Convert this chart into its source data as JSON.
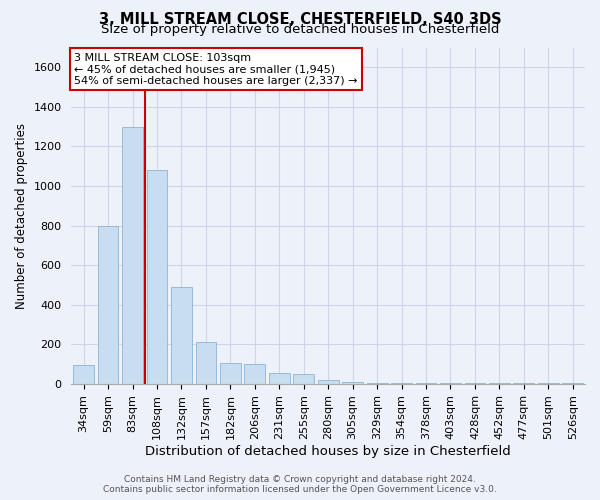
{
  "title": "3, MILL STREAM CLOSE, CHESTERFIELD, S40 3DS",
  "subtitle": "Size of property relative to detached houses in Chesterfield",
  "xlabel": "Distribution of detached houses by size in Chesterfield",
  "ylabel": "Number of detached properties",
  "categories": [
    "34sqm",
    "59sqm",
    "83sqm",
    "108sqm",
    "132sqm",
    "157sqm",
    "182sqm",
    "206sqm",
    "231sqm",
    "255sqm",
    "280sqm",
    "305sqm",
    "329sqm",
    "354sqm",
    "378sqm",
    "403sqm",
    "428sqm",
    "452sqm",
    "477sqm",
    "501sqm",
    "526sqm"
  ],
  "values": [
    95,
    800,
    1300,
    1080,
    490,
    215,
    105,
    100,
    55,
    50,
    20,
    12,
    5,
    5,
    5,
    5,
    5,
    5,
    5,
    5,
    5
  ],
  "bar_color": "#c9ddf0",
  "bar_edge_color": "#8ab4d8",
  "grid_color": "#cdd5e8",
  "background_color": "#edf1f9",
  "annotation_box_color": "#ffffff",
  "annotation_box_edge": "#cc0000",
  "property_line_color": "#cc0000",
  "property_bin_index": 3,
  "annotation_line1": "3 MILL STREAM CLOSE: 103sqm",
  "annotation_line2": "← 45% of detached houses are smaller (1,945)",
  "annotation_line3": "54% of semi-detached houses are larger (2,337) →",
  "footer_line1": "Contains HM Land Registry data © Crown copyright and database right 2024.",
  "footer_line2": "Contains public sector information licensed under the Open Government Licence v3.0.",
  "ylim_max": 1700,
  "yticks": [
    0,
    200,
    400,
    600,
    800,
    1000,
    1200,
    1400,
    1600
  ],
  "title_fontsize": 10.5,
  "subtitle_fontsize": 9.5,
  "ylabel_fontsize": 8.5,
  "xlabel_fontsize": 9.5,
  "tick_fontsize": 8,
  "annot_fontsize": 8,
  "footer_fontsize": 6.5
}
